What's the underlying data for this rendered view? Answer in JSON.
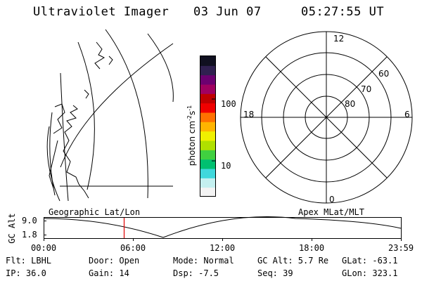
{
  "header": {
    "instrument": "Ultraviolet Imager",
    "date": "03 Jun 07",
    "time": "05:27:55 UT"
  },
  "colorbar": {
    "unit_label": "photon cm-2s-1",
    "unit_base": "photon cm",
    "unit_exp1": "-2",
    "unit_mid": "s",
    "unit_exp2": "-1",
    "tick_100": "100",
    "tick_10": "10",
    "colors_bottom_to_top": [
      "#f4f4f4",
      "#c4f0f0",
      "#40d8dc",
      "#00c070",
      "#40d040",
      "#b0e000",
      "#f0f000",
      "#ffb400",
      "#ff7000",
      "#f00000",
      "#c00000",
      "#a00060",
      "#6c0070",
      "#302050",
      "#101020"
    ]
  },
  "polar_plot": {
    "label_12": "12",
    "label_18": "18",
    "label_6": "6",
    "label_0": "0",
    "label_60": "60",
    "label_70": "70",
    "label_80": "80"
  },
  "panel_labels": {
    "left": "Geographic Lat/Lon",
    "right": "Apex MLat/MLT"
  },
  "altitude_plot": {
    "ylabel": "GC Alt",
    "ytick_top": "9.0",
    "ytick_bottom": "1.8",
    "xticks": [
      "00:00",
      "06:00",
      "12:00",
      "18:00",
      "23:59"
    ],
    "current_time_color": "#e00000"
  },
  "status": {
    "flt": "Flt: LBHL",
    "door": "Door: Open",
    "mode": "Mode: Normal",
    "gc_alt": "GC Alt: 5.7 Re",
    "glat": "GLat: -63.1",
    "ip": "IP: 36.0",
    "gain": "Gain: 14",
    "dsp": "Dsp:   -7.5",
    "seq": "Seq: 39",
    "glon": "GLon: 323.1"
  }
}
